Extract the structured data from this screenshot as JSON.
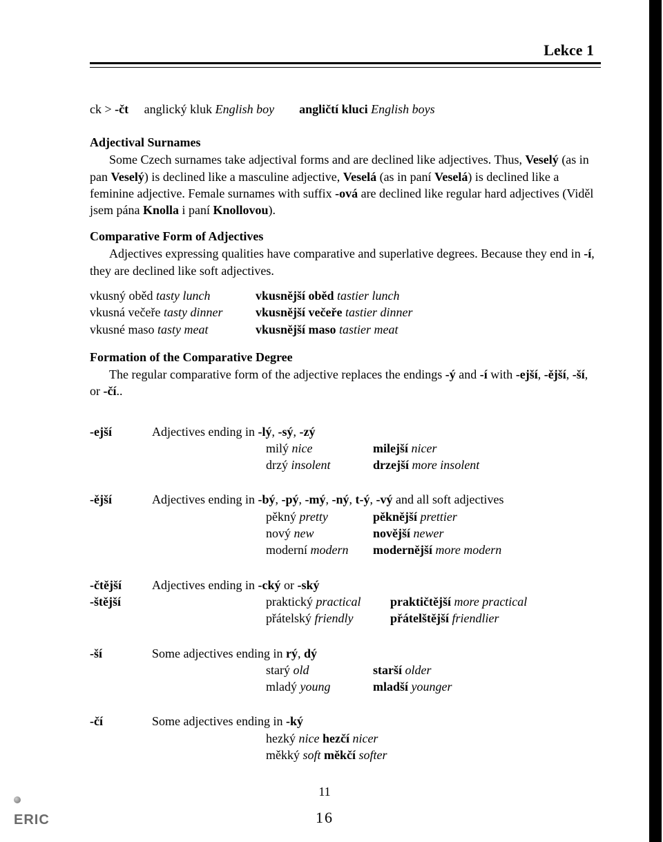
{
  "header": {
    "title": "Lekce 1"
  },
  "intro_line": {
    "prefix": "ck > ",
    "bold1": "-čt",
    "gap": "    ",
    "ex1": "anglický kluk ",
    "ex1_it": "English boy",
    "gap2": "       ",
    "ex2_bold": "angličtí kluci ",
    "ex2_it": "English boys"
  },
  "section1": {
    "heading": "Adjectival Surnames",
    "body_parts": [
      {
        "t": "Some Czech surnames take adjectival forms and are declined like adjectives. Thus, "
      },
      {
        "b": "Veselý"
      },
      {
        "t": " (as in pan "
      },
      {
        "b": "Veselý"
      },
      {
        "t": ") is declined like a masculine adjective, "
      },
      {
        "b": "Veselá"
      },
      {
        "t": " (as in paní "
      },
      {
        "b": "Veselá"
      },
      {
        "t": ") is declined like a feminine adjective. Female surnames with suffix "
      },
      {
        "b": "-ová"
      },
      {
        "t": " are declined like regular hard adjectives (Viděl jsem pána "
      },
      {
        "b": "Knolla"
      },
      {
        "t": " i paní "
      },
      {
        "b": "Knollovou"
      },
      {
        "t": ")."
      }
    ]
  },
  "section2": {
    "heading": "Comparative Form of Adjectives",
    "body_parts": [
      {
        "t": "Adjectives expressing qualities have comparative and superlative degrees. Because they end in "
      },
      {
        "b": "-í"
      },
      {
        "t": ", they are declined like soft adjectives."
      }
    ],
    "examples": [
      {
        "l": "vkusný oběd ",
        "li": "tasty lunch",
        "rb": "vkusnější oběd ",
        "ri": "tastier lunch"
      },
      {
        "l": "vkusná večeře ",
        "li": "tasty dinner",
        "rb": "vkusnější večeře ",
        "ri": "tastier dinner"
      },
      {
        "l": "vkusné maso ",
        "li": "tasty meat",
        "rb": "vkusnější maso ",
        "ri": "tastier meat"
      }
    ]
  },
  "section3": {
    "heading": "Formation of the Comparative Degree",
    "body_parts": [
      {
        "t": "The regular comparative form of the adjective replaces the endings "
      },
      {
        "b": "-ý"
      },
      {
        "t": " and "
      },
      {
        "b": "-í"
      },
      {
        "t": " with "
      },
      {
        "b": "-ejší"
      },
      {
        "t": ", "
      },
      {
        "b": "-ější"
      },
      {
        "t": ", "
      },
      {
        "b": "-ší"
      },
      {
        "t": ", or "
      },
      {
        "b": "-čí"
      },
      {
        "t": ".."
      }
    ]
  },
  "groups": [
    {
      "suffix": "-ejší",
      "desc_parts": [
        {
          "t": "Adjectives ending in "
        },
        {
          "b": "-lý"
        },
        {
          "t": ", "
        },
        {
          "b": "-sý"
        },
        {
          "t": ", "
        },
        {
          "b": "-zý"
        }
      ],
      "examples": [
        {
          "l": "milý ",
          "li": "nice",
          "rb": "milejší ",
          "ri": "nicer"
        },
        {
          "l": "drzý ",
          "li": "insolent",
          "rb": "drzejší ",
          "ri": "more insolent"
        }
      ]
    },
    {
      "suffix": "-ější",
      "desc_parts": [
        {
          "t": "Adjectives ending in "
        },
        {
          "b": "-bý"
        },
        {
          "t": ", "
        },
        {
          "b": "-pý"
        },
        {
          "t": ", "
        },
        {
          "b": "-mý"
        },
        {
          "t": ", "
        },
        {
          "b": "-ný"
        },
        {
          "t": ", "
        },
        {
          "b": "t-ý"
        },
        {
          "t": ", "
        },
        {
          "b": "-vý"
        },
        {
          "t": " and all soft adjectives"
        }
      ],
      "examples": [
        {
          "l": "pěkný ",
          "li": "pretty",
          "rb": "pěknější ",
          "ri": "prettier"
        },
        {
          "l": "nový ",
          "li": "new",
          "rb": "novější ",
          "ri": "newer"
        },
        {
          "l": "moderní ",
          "li": "modern",
          "rb": " modernější ",
          "ri": "more modern"
        }
      ]
    },
    {
      "suffix": "-čtější\n-štější",
      "desc_parts": [
        {
          "t": "Adjectives ending in "
        },
        {
          "b": "-cký"
        },
        {
          "t": " or "
        },
        {
          "b": "-ský"
        }
      ],
      "examples": [
        {
          "l": "praktický ",
          "li": "practical",
          "rb": " praktičtější ",
          "ri": "more practical"
        },
        {
          "l": "přátelský ",
          "li": "friendly",
          "rb": "  přátelštější ",
          "ri": "friendlier"
        }
      ]
    },
    {
      "suffix": "-ší",
      "desc_parts": [
        {
          "t": "Some adjectives ending in "
        },
        {
          "b": "rý"
        },
        {
          "t": ", "
        },
        {
          "b": "dý"
        }
      ],
      "examples": [
        {
          "l": "starý ",
          "li": "old",
          "rb": "starší ",
          "ri": "older"
        },
        {
          "l": "mladý ",
          "li": "young",
          "rb": "mladší ",
          "ri": "younger"
        }
      ]
    },
    {
      "suffix": "-čí",
      "desc_parts": [
        {
          "t": "Some adjectives ending in "
        },
        {
          "b": "-ký"
        }
      ],
      "examples_inline": [
        {
          "l": "hezký ",
          "li": "nice",
          "rb": "  hezčí ",
          "ri": "nicer"
        },
        {
          "l": "měkký ",
          "li": "soft",
          "rb": "  měkčí ",
          "ri": "softer"
        }
      ]
    }
  ],
  "pagenum": "11",
  "pagenum2": "16",
  "eric": "ERIC"
}
